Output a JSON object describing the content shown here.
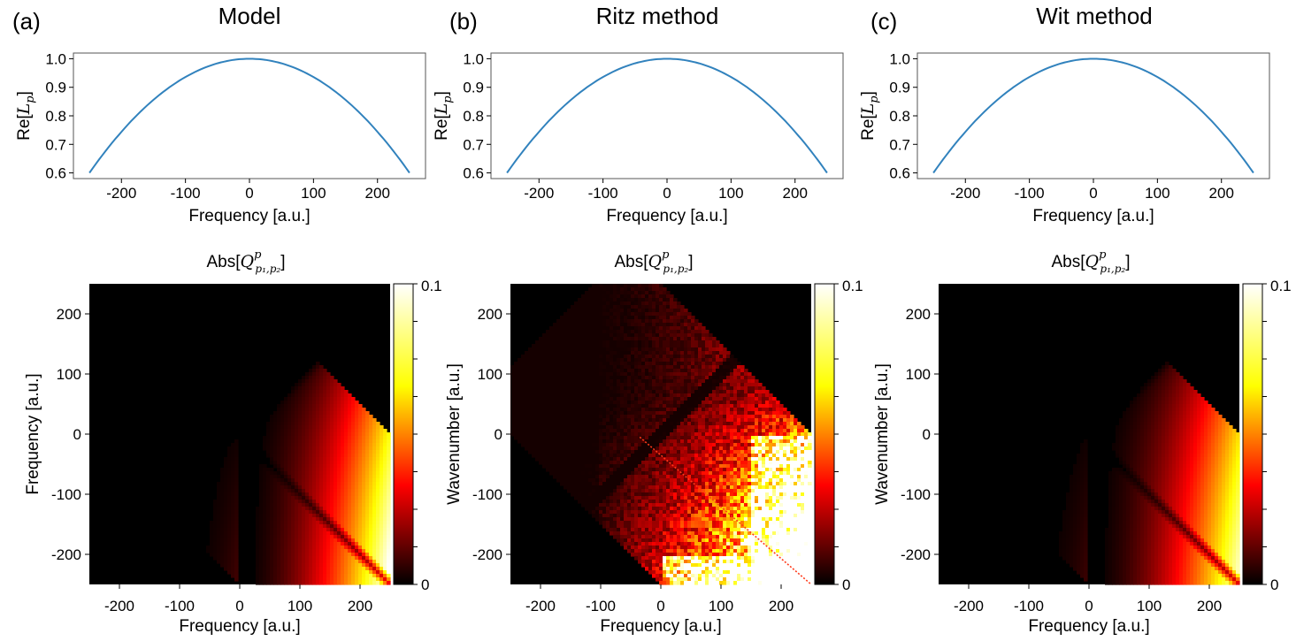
{
  "panels": [
    {
      "letter": "(a)",
      "title": "Model",
      "line_ylabel_prefix": "Re[",
      "line_ylabel_var": "L",
      "line_ylabel_sub": "p",
      "line_ylabel_suffix": "]",
      "line_xlabel": "Frequency [a.u.]",
      "heat_title_prefix": "Abs[",
      "heat_title_var": "Q",
      "heat_title_sup": "p",
      "heat_title_sub": "p₁,p₂",
      "heat_title_suffix": "]",
      "heat_ylabel": "Frequency [a.u.]",
      "heat_xlabel": "Frequency [a.u.]",
      "variant": "model"
    },
    {
      "letter": "(b)",
      "title": "Ritz method",
      "line_ylabel_prefix": "Re[",
      "line_ylabel_var": "L",
      "line_ylabel_sub": "p",
      "line_ylabel_suffix": "]",
      "line_xlabel": "Frequency [a.u.]",
      "heat_title_prefix": "Abs[",
      "heat_title_var": "Q",
      "heat_title_sup": "p",
      "heat_title_sub": "p₁,p₂",
      "heat_title_suffix": "]",
      "heat_ylabel": "Wavenumber [a.u.]",
      "heat_xlabel": "Frequency [a.u.]",
      "variant": "ritz"
    },
    {
      "letter": "(c)",
      "title": "Wit method",
      "line_ylabel_prefix": "Re[",
      "line_ylabel_var": "L",
      "line_ylabel_sub": "p",
      "line_ylabel_suffix": "]",
      "line_xlabel": "Frequency [a.u.]",
      "heat_title_prefix": "Abs[",
      "heat_title_var": "Q",
      "heat_title_sup": "p",
      "heat_title_sub": "p₁,p₂",
      "heat_title_suffix": "]",
      "heat_ylabel": "Wavenumber [a.u.]",
      "heat_xlabel": "Frequency [a.u.]",
      "variant": "wit"
    }
  ],
  "chart_data": [
    {
      "type": "line",
      "function": "1 - 0.4*(x/250)^2",
      "x": [
        -250,
        -200,
        -150,
        -100,
        -50,
        0,
        50,
        100,
        150,
        200,
        250
      ],
      "y": [
        0.6,
        0.744,
        0.856,
        0.936,
        0.984,
        1.0,
        0.984,
        0.936,
        0.856,
        0.744,
        0.6
      ],
      "xlim": [
        -275,
        275
      ],
      "ylim": [
        0.58,
        1.02
      ],
      "xticks": [
        "-200",
        "-100",
        "0",
        "100",
        "200"
      ],
      "xtick_values": [
        -200,
        -100,
        0,
        100,
        200
      ],
      "yticks": [
        "0.6",
        "0.7",
        "0.8",
        "0.9",
        "1.0"
      ],
      "ytick_values": [
        0.6,
        0.7,
        0.8,
        0.9,
        1.0
      ],
      "color": "#3182bd"
    },
    {
      "type": "heatmap",
      "xlim": [
        -250,
        250
      ],
      "ylim": [
        -250,
        250
      ],
      "xticks": [
        "-200",
        "-100",
        "0",
        "100",
        "200"
      ],
      "xtick_values": [
        -200,
        -100,
        0,
        100,
        200
      ],
      "yticks": [
        "-200",
        "-100",
        "0",
        "100",
        "200"
      ],
      "ytick_values": [
        -200,
        -100,
        0,
        100,
        200
      ],
      "colormap": "hot",
      "colorbar_min": "0",
      "colorbar_max": "0.1",
      "colorbar_ticks": [
        0,
        0.0125,
        0.025,
        0.0375,
        0.05,
        0.0625,
        0.075,
        0.0875,
        0.1
      ]
    }
  ]
}
